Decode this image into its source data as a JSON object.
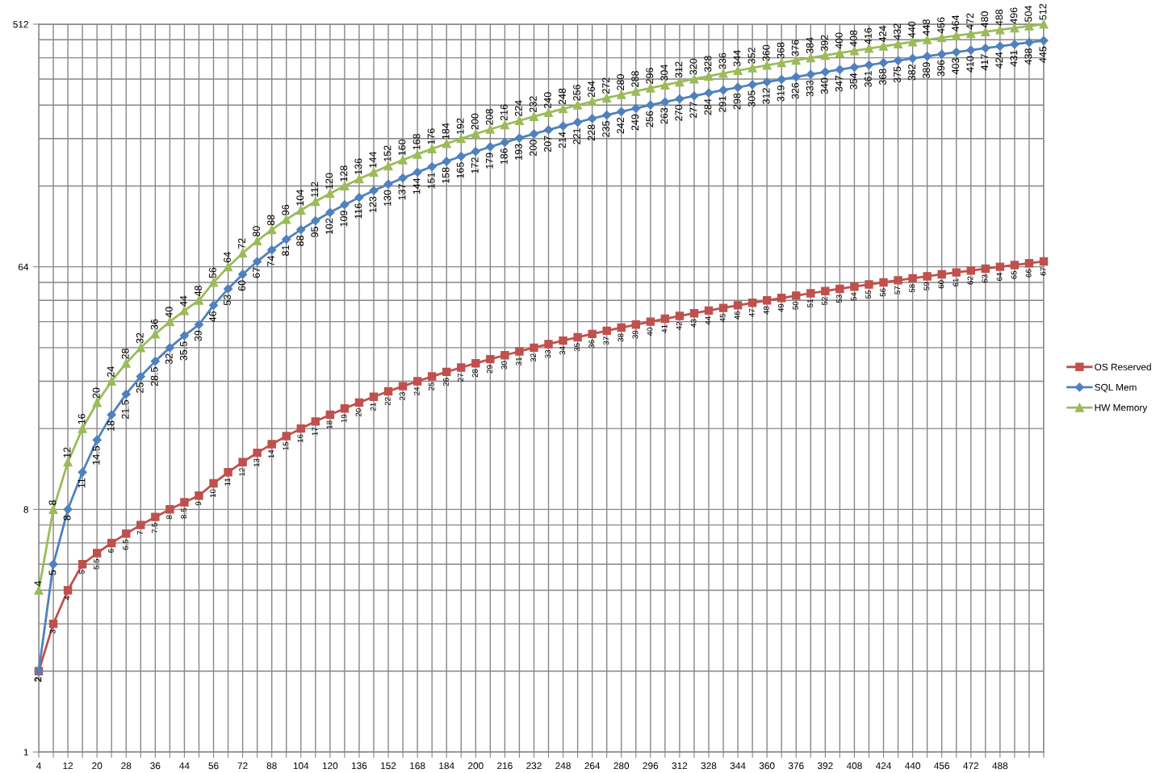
{
  "chart_data": {
    "type": "line",
    "log": true,
    "grid": true,
    "legend": "right",
    "data_labels": true,
    "line_style": "solid",
    "categories": [
      "4",
      null,
      "12",
      null,
      "20",
      null,
      "28",
      null,
      "36",
      null,
      "44",
      null,
      "56",
      null,
      "72",
      null,
      "88",
      null,
      "104",
      null,
      "120",
      null,
      "136",
      null,
      "152",
      null,
      "168",
      null,
      "184",
      null,
      "200",
      null,
      "216",
      null,
      "232",
      null,
      "248",
      null,
      "264",
      null,
      "280",
      null,
      "296",
      null,
      "312",
      null,
      "328",
      null,
      "344",
      null,
      "360",
      null,
      "376",
      null,
      "392",
      null,
      "408",
      null,
      "424",
      null,
      "440",
      null,
      "456",
      null,
      "472",
      null,
      "488",
      null,
      null,
      null
    ],
    "ylim": [
      1,
      512
    ],
    "yticks": [
      1,
      {
        "value": 2,
        "label": null
      },
      {
        "value": 3,
        "label": null
      },
      {
        "value": 4,
        "label": null
      },
      {
        "value": 5,
        "label": null
      },
      {
        "value": 6,
        "label": null
      },
      {
        "value": 7,
        "label": null
      },
      8,
      {
        "value": 16,
        "label": null
      },
      {
        "value": 24,
        "label": null
      },
      {
        "value": 32,
        "label": null
      },
      {
        "value": 40,
        "label": null
      },
      {
        "value": 48,
        "label": null
      },
      {
        "value": 56,
        "label": null
      },
      64,
      {
        "value": 128,
        "label": null
      },
      {
        "value": 192,
        "label": null
      },
      {
        "value": 256,
        "label": null
      },
      {
        "value": 320,
        "label": null
      },
      {
        "value": 384,
        "label": null
      },
      {
        "value": 448,
        "label": null
      },
      512
    ],
    "series": [
      {
        "name": "OS Reserved",
        "color": "#c0504d",
        "marker": "square",
        "values": [
          2,
          3,
          4,
          5,
          5.5,
          6,
          6.5,
          7,
          7.5,
          8,
          8.5,
          9,
          10,
          11,
          12,
          13,
          14,
          15,
          16,
          17,
          18,
          19,
          20,
          21,
          22,
          23,
          24,
          25,
          26,
          27,
          28,
          29,
          30,
          31,
          32,
          33,
          34,
          35,
          36,
          37,
          38,
          39,
          40,
          41,
          42,
          43,
          44,
          45,
          46,
          47,
          48,
          49,
          50,
          51,
          52,
          53,
          54,
          55,
          56,
          57,
          58,
          59,
          60,
          61,
          62,
          63,
          64,
          65,
          66,
          67
        ]
      },
      {
        "name": "SQL Mem",
        "color": "#4f81bd",
        "marker": "diamond",
        "values": [
          2,
          5,
          8,
          11,
          14.5,
          18,
          21.5,
          25,
          28.5,
          32,
          35.5,
          39,
          46,
          53,
          60,
          67,
          74,
          81,
          88,
          95,
          102,
          109,
          116,
          123,
          130,
          137,
          144,
          151,
          158,
          165,
          172,
          179,
          186,
          193,
          200,
          207,
          214,
          221,
          228,
          235,
          242,
          249,
          256,
          263,
          270,
          277,
          284,
          291,
          298,
          305,
          312,
          319,
          326,
          333,
          340,
          347,
          354,
          361,
          368,
          375,
          382,
          389,
          396,
          403,
          410,
          417,
          424,
          431,
          438,
          445
        ]
      },
      {
        "name": "HW Memory",
        "color": "#9bbb59",
        "marker": "triangle",
        "values": [
          4,
          8,
          12,
          16,
          20,
          24,
          28,
          32,
          36,
          40,
          44,
          48,
          56,
          64,
          72,
          80,
          88,
          96,
          104,
          112,
          120,
          128,
          136,
          144,
          152,
          160,
          168,
          176,
          184,
          192,
          200,
          208,
          216,
          224,
          232,
          240,
          248,
          256,
          264,
          272,
          280,
          288,
          296,
          304,
          312,
          320,
          328,
          336,
          344,
          352,
          360,
          368,
          376,
          384,
          392,
          400,
          408,
          416,
          424,
          432,
          440,
          448,
          456,
          464,
          472,
          480,
          488,
          496,
          504,
          512
        ]
      }
    ]
  }
}
